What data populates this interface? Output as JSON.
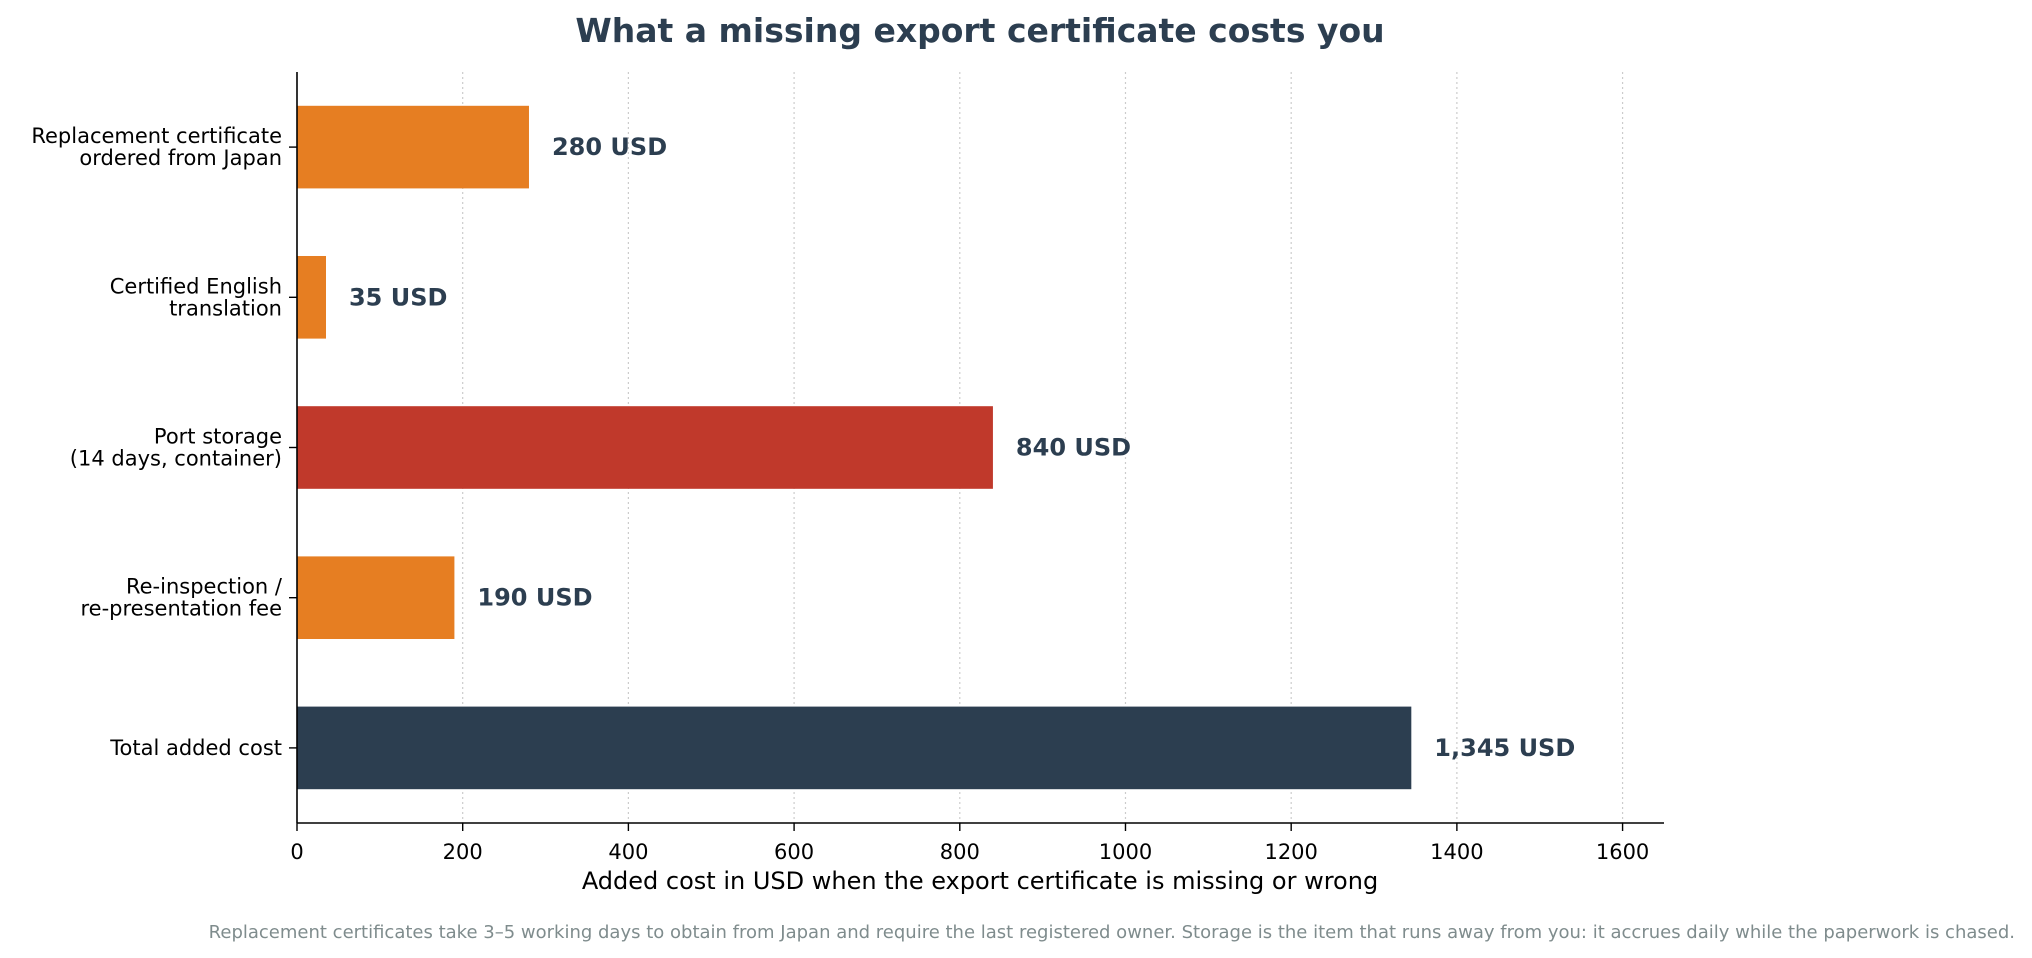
{
  "chart_data": {
    "type": "bar",
    "orientation": "horizontal",
    "title": "What a missing export certificate costs you",
    "xlabel": "Added cost in USD when the export certificate is missing or wrong",
    "ylabel": "",
    "xlim": [
      0,
      1650
    ],
    "xticks": [
      0,
      200,
      400,
      600,
      800,
      1000,
      1200,
      1400,
      1600
    ],
    "grid": "x-dotted",
    "categories": [
      [
        "Replacement certificate",
        "ordered from Japan"
      ],
      [
        "Certified English",
        "translation"
      ],
      [
        "Port storage",
        "(14 days, container)"
      ],
      [
        "Re-inspection /",
        "re-presentation fee"
      ],
      [
        "Total added cost"
      ]
    ],
    "values": [
      280,
      35,
      840,
      190,
      1345
    ],
    "value_labels": [
      "280 USD",
      "35 USD",
      "840 USD",
      "190 USD",
      "1,345 USD"
    ],
    "colors": [
      "#e67e22",
      "#e67e22",
      "#c0392b",
      "#e67e22",
      "#2c3e50"
    ],
    "footnote": "Replacement certificates take 3–5 working days to obtain from Japan and require the last registered owner. Storage is the item that runs away from you: it accrues daily while the paperwork is chased."
  }
}
